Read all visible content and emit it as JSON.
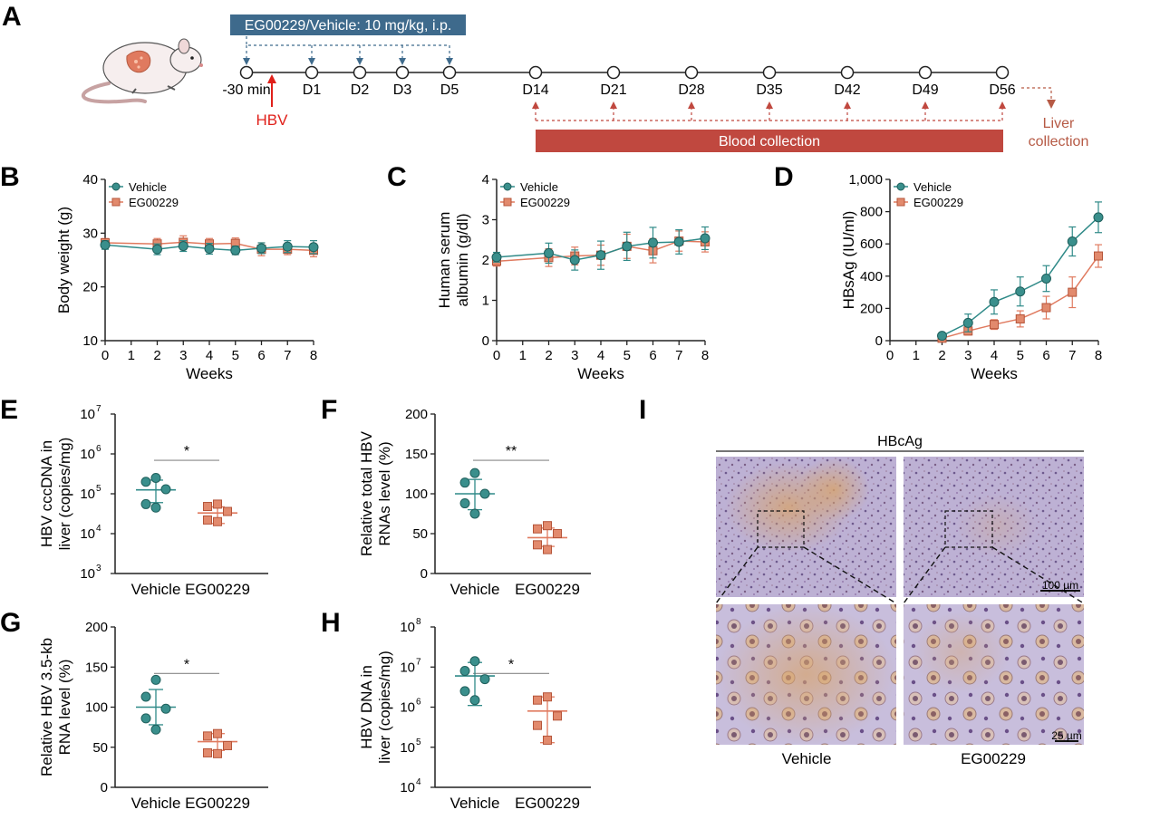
{
  "colors": {
    "vehicle": "#3a8f8c",
    "vehicle_line": "#2f8a88",
    "eg": "#e28a6d",
    "eg_line": "#e07a5f",
    "timeline_box": "#3e6a8c",
    "blood_bar": "#c0483f",
    "liver": "#b65a45",
    "hbv": "#e0201a",
    "axis": "#222222"
  },
  "timeline": {
    "letter": "A",
    "treatment_label": "EG00229/Vehicle: 10 mg/kg, i.p.",
    "hbv_label": "HBV",
    "timepoints": [
      "-30 min",
      "D1",
      "D2",
      "D3",
      "D5",
      "D14",
      "D21",
      "D28",
      "D35",
      "D42",
      "D49",
      "D56"
    ],
    "blood_label": "Blood collection",
    "liver_label_1": "Liver",
    "liver_label_2": "collection"
  },
  "chart_data": [
    {
      "panel": "B",
      "type": "line",
      "xlabel": "Weeks",
      "ylabel": "Body weight (g)",
      "xlim": [
        0,
        8
      ],
      "ylim": [
        10,
        40
      ],
      "xticks": [
        "0",
        "1",
        "2",
        "3",
        "4",
        "5",
        "6",
        "7",
        "8"
      ],
      "yticks": [
        "10",
        "20",
        "30",
        "40"
      ],
      "legend": [
        "Vehicle",
        "EG00229"
      ],
      "x": [
        0,
        2,
        3,
        4,
        5,
        6,
        7,
        8
      ],
      "series": [
        {
          "name": "Vehicle",
          "values": [
            27.8,
            27.0,
            27.6,
            27.1,
            26.8,
            27.2,
            27.5,
            27.4
          ],
          "err": [
            0.8,
            1.0,
            1.0,
            1.0,
            0.8,
            1.0,
            1.1,
            1.2
          ]
        },
        {
          "name": "EG00229",
          "values": [
            28.2,
            28.0,
            28.3,
            28.0,
            28.1,
            27.0,
            27.0,
            26.8
          ],
          "err": [
            0.8,
            1.0,
            1.2,
            1.0,
            1.0,
            1.2,
            1.0,
            1.2
          ]
        }
      ]
    },
    {
      "panel": "C",
      "type": "line",
      "xlabel": "Weeks",
      "ylabel_1": "Human serum",
      "ylabel_2": "albumin (g/dl)",
      "xlim": [
        0,
        8
      ],
      "ylim": [
        0,
        4
      ],
      "xticks": [
        "0",
        "1",
        "2",
        "3",
        "4",
        "5",
        "6",
        "7",
        "8"
      ],
      "yticks": [
        "0",
        "1",
        "2",
        "3",
        "4"
      ],
      "legend": [
        "Vehicle",
        "EG00229"
      ],
      "x": [
        0,
        2,
        3,
        4,
        5,
        6,
        7,
        8
      ],
      "series": [
        {
          "name": "Vehicle",
          "values": [
            2.07,
            2.17,
            2.0,
            2.12,
            2.34,
            2.43,
            2.45,
            2.54
          ],
          "err": [
            0.12,
            0.25,
            0.25,
            0.35,
            0.35,
            0.38,
            0.3,
            0.28
          ]
        },
        {
          "name": "EG00229",
          "values": [
            1.97,
            2.06,
            2.1,
            2.12,
            2.34,
            2.23,
            2.47,
            2.45
          ],
          "err": [
            0.12,
            0.22,
            0.22,
            0.25,
            0.3,
            0.3,
            0.25,
            0.25
          ]
        }
      ]
    },
    {
      "panel": "D",
      "type": "line",
      "xlabel": "Weeks",
      "ylabel": "HBsAg (IU/ml)",
      "xlim": [
        0,
        8
      ],
      "ylim": [
        0,
        1000
      ],
      "xticks": [
        "0",
        "1",
        "2",
        "3",
        "4",
        "5",
        "6",
        "7",
        "8"
      ],
      "yticks": [
        "0",
        "200",
        "400",
        "600",
        "800",
        "1,000"
      ],
      "legend": [
        "Vehicle",
        "EG00229"
      ],
      "x": [
        2,
        3,
        4,
        5,
        6,
        7,
        8
      ],
      "series": [
        {
          "name": "Vehicle",
          "values": [
            30,
            110,
            240,
            305,
            385,
            615,
            765
          ],
          "err": [
            12,
            55,
            75,
            90,
            80,
            90,
            95
          ]
        },
        {
          "name": "EG00229",
          "values": [
            15,
            60,
            100,
            135,
            205,
            300,
            525
          ],
          "err": [
            10,
            25,
            30,
            50,
            70,
            95,
            70
          ]
        }
      ]
    },
    {
      "panel": "E",
      "type": "scatter",
      "log": true,
      "ylabel_1": "HBV cccDNA in",
      "ylabel_2": "liver (copies/mg)",
      "ylim_exp": [
        3,
        7
      ],
      "yticks_exp": [
        "3",
        "4",
        "5",
        "6",
        "7"
      ],
      "categories": [
        "Vehicle",
        "EG00229"
      ],
      "sig": "*",
      "groups": [
        {
          "name": "Vehicle",
          "points": [
            250000,
            200000,
            130000,
            55000,
            45000
          ],
          "mean": 125000,
          "err_lo": 60000,
          "err_hi": 220000
        },
        {
          "name": "EG00229",
          "points": [
            55000,
            48000,
            36000,
            22000,
            20000
          ],
          "mean": 33000,
          "err_lo": 18000,
          "err_hi": 47000
        }
      ]
    },
    {
      "panel": "F",
      "type": "scatter",
      "ylabel_1": "Relative total HBV",
      "ylabel_2": "RNAs level (%)",
      "ylim": [
        0,
        200
      ],
      "yticks": [
        "0",
        "50",
        "100",
        "150",
        "200"
      ],
      "categories": [
        "Vehicle",
        "EG00229"
      ],
      "sig": "**",
      "groups": [
        {
          "name": "Vehicle",
          "points": [
            126,
            114,
            100,
            88,
            75
          ],
          "mean": 100,
          "err_lo": 80,
          "err_hi": 118
        },
        {
          "name": "EG00229",
          "points": [
            60,
            56,
            50,
            36,
            30
          ],
          "mean": 45,
          "err_lo": 34,
          "err_hi": 57
        }
      ]
    },
    {
      "panel": "G",
      "type": "scatter",
      "ylabel_1": "Relative HBV 3.5-kb",
      "ylabel_2": "RNA level (%)",
      "ylim": [
        0,
        200
      ],
      "yticks": [
        "0",
        "50",
        "100",
        "150",
        "200"
      ],
      "categories": [
        "Vehicle",
        "EG00229"
      ],
      "sig": "*",
      "groups": [
        {
          "name": "Vehicle",
          "points": [
            134,
            113,
            98,
            86,
            72
          ],
          "mean": 100,
          "err_lo": 78,
          "err_hi": 122
        },
        {
          "name": "EG00229",
          "points": [
            67,
            64,
            52,
            43,
            42
          ],
          "mean": 57,
          "err_lo": 46,
          "err_hi": 67
        }
      ]
    },
    {
      "panel": "H",
      "type": "scatter",
      "log": true,
      "ylabel_1": "HBV DNA in",
      "ylabel_2": "liver (copies/mg)",
      "ylim_exp": [
        4,
        8
      ],
      "yticks_exp": [
        "4",
        "5",
        "6",
        "7",
        "8"
      ],
      "categories": [
        "Vehicle",
        "EG00229"
      ],
      "sig": "*",
      "groups": [
        {
          "name": "Vehicle",
          "points": [
            14000000,
            8000000,
            5000000,
            2500000,
            1500000
          ],
          "mean": 6000000,
          "err_lo": 1100000,
          "err_hi": 13000000
        },
        {
          "name": "EG00229",
          "points": [
            1800000,
            1500000,
            600000,
            350000,
            150000
          ],
          "mean": 800000,
          "err_lo": 130000,
          "err_hi": 1800000
        }
      ]
    }
  ],
  "panel_i": {
    "letter": "I",
    "title": "HBcAg",
    "scale_top": "100 µm",
    "scale_bottom": "25 µm",
    "labels": [
      "Vehicle",
      "EG00229"
    ]
  }
}
